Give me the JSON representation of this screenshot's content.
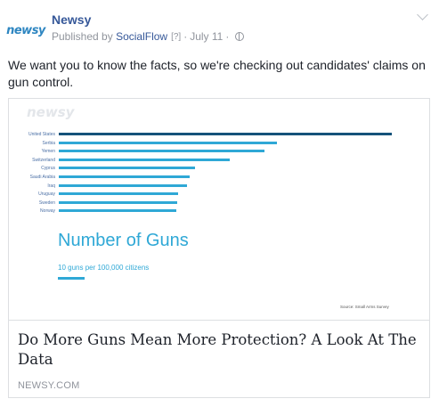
{
  "post": {
    "page_name": "Newsy",
    "avatar_text": "newsy",
    "published_prefix": "Published by",
    "publisher": "SocialFlow",
    "help_marker": "[?]",
    "separator": "·",
    "date": "July 11",
    "privacy_icon": "globe-icon",
    "menu_icon": "chevron-down-icon",
    "text": "We want you to know the facts, so we're checking out candidates' claims on gun control."
  },
  "card": {
    "watermark": "newsy",
    "title": "Do More Guns Mean More Protection? A Look At The Data",
    "domain": "NEWSY.COM"
  },
  "chart_data": {
    "type": "bar",
    "orientation": "horizontal",
    "title": "Number of Guns",
    "subtitle": "10 guns per 100,000 citizens",
    "source": "Source: Small Arms Survey",
    "categories": [
      "United States",
      "Serbia",
      "Yemen",
      "Switzerland",
      "Cyprus",
      "Saudi Arabia",
      "Iraq",
      "Uruguay",
      "Sweden",
      "Norway"
    ],
    "values": [
      88.8,
      58.2,
      54.8,
      45.7,
      36.4,
      35.0,
      34.2,
      31.8,
      31.6,
      31.3
    ],
    "highlight_color": "#15527a",
    "bar_color": "#2fa8d6"
  }
}
